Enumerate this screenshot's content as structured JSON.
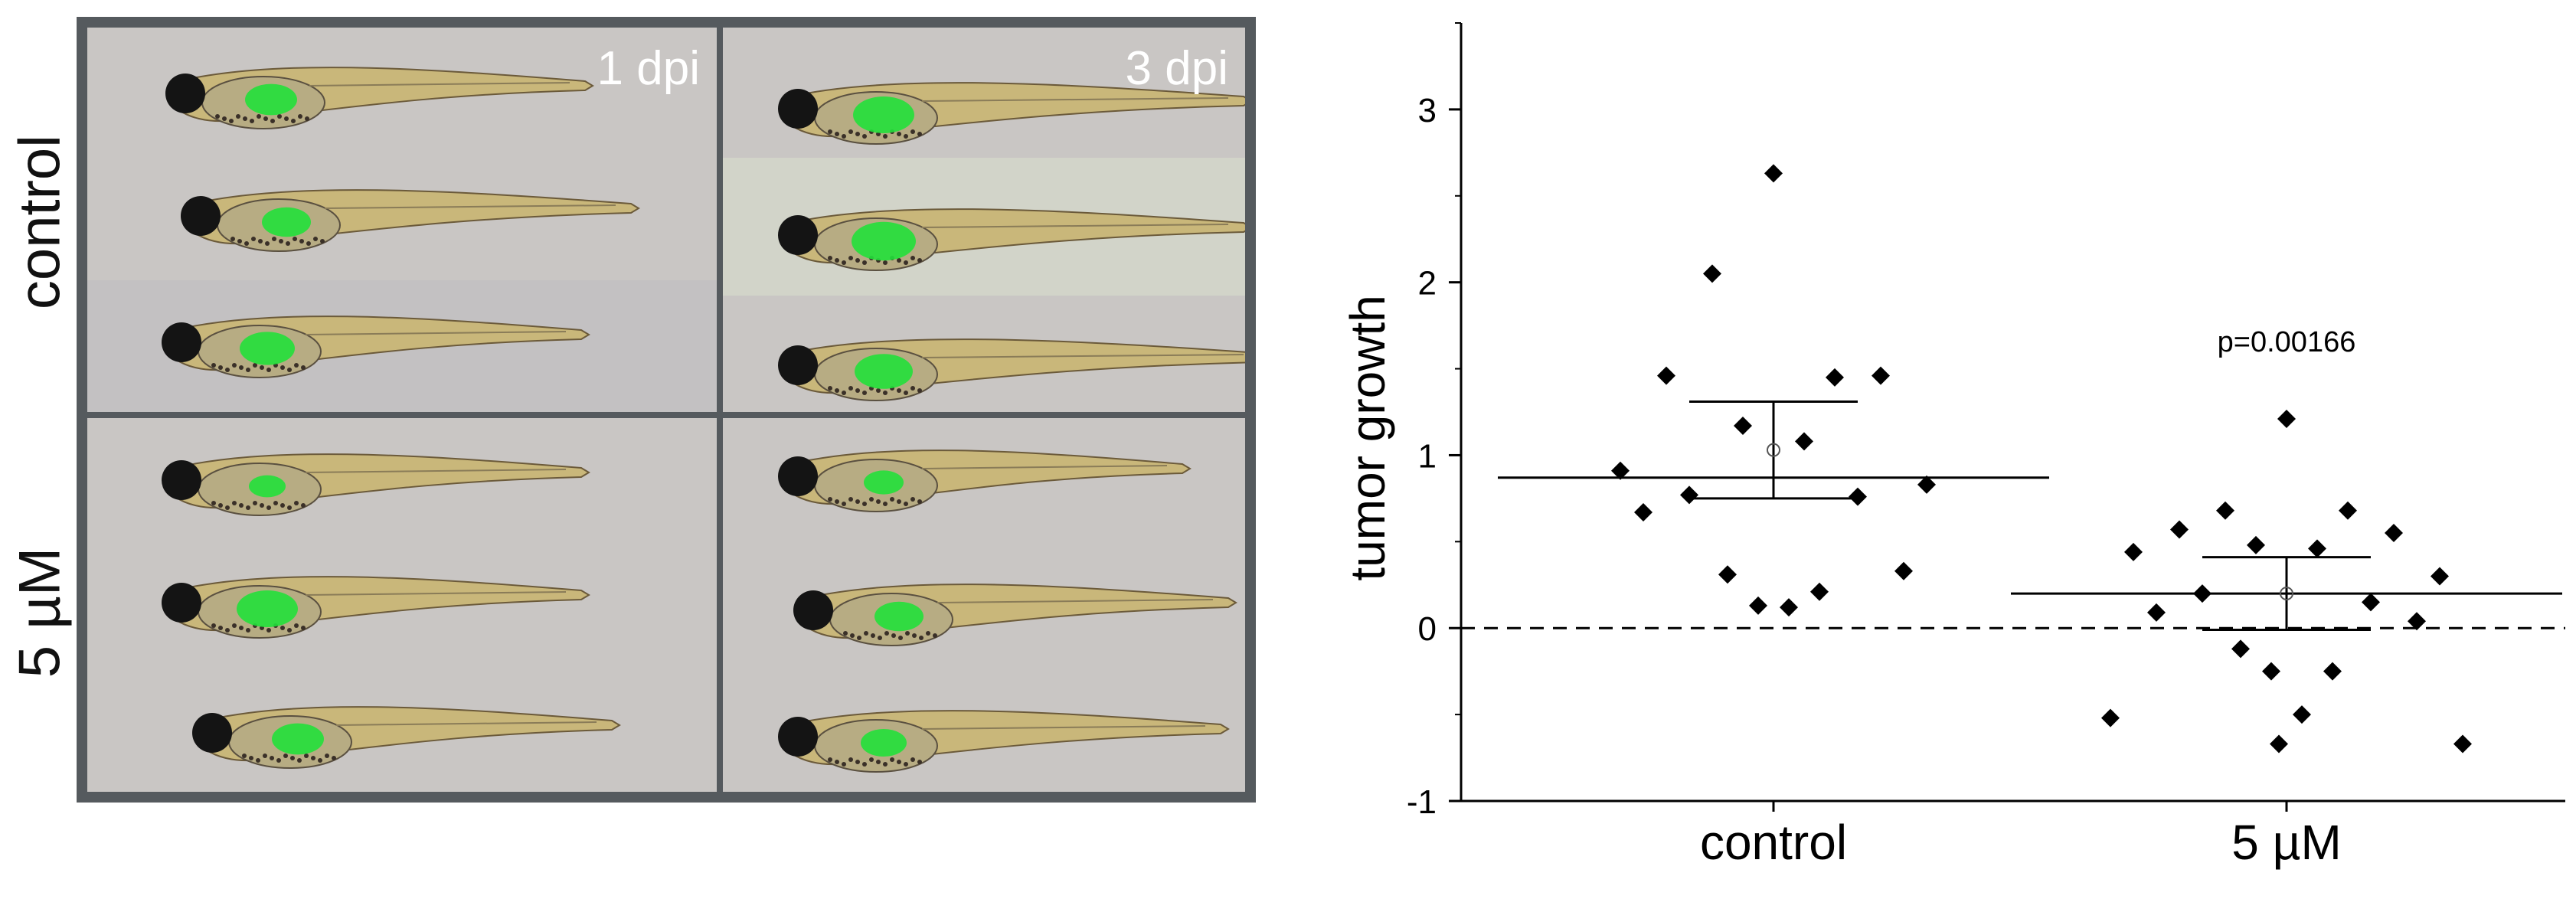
{
  "panel": {
    "row_labels": [
      "control",
      "5 µM"
    ],
    "column_labels": [
      "1 dpi",
      "3 dpi"
    ]
  },
  "colors": {
    "frame": "#555a5e",
    "background": "#c9c6c4",
    "fluorescence": "#22e03a",
    "fish_body": "#c9b77a",
    "point": "#000000"
  },
  "chart_data": {
    "type": "scatter",
    "xlabel": "",
    "ylabel": "tumor growth",
    "categories": [
      "control",
      "5 µM"
    ],
    "ylim": [
      -1,
      3.5
    ],
    "yticks": [
      -1,
      0,
      1,
      2,
      3
    ],
    "reference_line": {
      "y": 0,
      "style": "dashed"
    },
    "grid": false,
    "series": [
      {
        "category": "control",
        "points": [
          2.63,
          2.05,
          1.45,
          1.46,
          1.46,
          1.17,
          1.08,
          0.91,
          0.83,
          0.77,
          0.76,
          0.67,
          0.33,
          0.31,
          0.21,
          0.13,
          0.12
        ],
        "center": 0.87,
        "error_upper": 1.31,
        "error_lower": 0.75,
        "mean_marker": 1.03
      },
      {
        "category": "5 µM",
        "points": [
          1.21,
          0.68,
          0.68,
          0.57,
          0.55,
          0.48,
          0.46,
          0.44,
          0.3,
          0.2,
          0.15,
          0.09,
          0.04,
          -0.12,
          -0.25,
          -0.25,
          -0.5,
          -0.52,
          -0.67,
          -0.67
        ],
        "center": 0.2,
        "error_upper": 0.41,
        "error_lower": -0.01,
        "mean_marker": 0.2
      }
    ],
    "annotations": [
      {
        "text": "p=0.00166",
        "category": "5 µM",
        "y": 1.6
      }
    ]
  }
}
